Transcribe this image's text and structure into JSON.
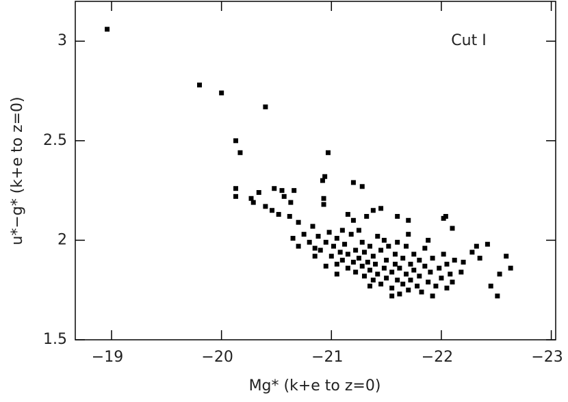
{
  "chart_data": {
    "type": "scatter",
    "xlabel": "Mg* (k+e to z=0)",
    "ylabel": "u*−g* (k+e to z=0)",
    "annotation": "Cut I",
    "xlim": [
      -18.67,
      -23.04
    ],
    "ylim": [
      1.5,
      3.2
    ],
    "xticks": [
      {
        "value": -19,
        "label": "−19"
      },
      {
        "value": -20,
        "label": "−20"
      },
      {
        "value": -21,
        "label": "−21"
      },
      {
        "value": -22,
        "label": "−22"
      },
      {
        "value": -23,
        "label": "−23"
      }
    ],
    "yticks": [
      1.5,
      2,
      2.5,
      3
    ],
    "color": "#000000",
    "x": [
      -18.96,
      -19.8,
      -20.0,
      -20.4,
      -20.13,
      -20.17,
      -20.97,
      -20.13,
      -20.13,
      -20.34,
      -20.27,
      -20.29,
      -20.48,
      -20.55,
      -20.66,
      -20.57,
      -20.63,
      -20.46,
      -20.52,
      -20.4,
      -20.92,
      -20.94,
      -20.93,
      -20.93,
      -21.2,
      -21.28,
      -21.38,
      -21.45,
      -21.32,
      -21.15,
      -21.2,
      -20.7,
      -20.62,
      -20.83,
      -21.6,
      -21.7,
      -22.04,
      -22.02,
      -22.1,
      -22.32,
      -22.42,
      -22.28,
      -22.35,
      -22.53,
      -22.59,
      -22.63,
      -22.45,
      -22.51,
      -22.2,
      -22.18,
      -20.75,
      -20.8,
      -20.85,
      -20.88,
      -20.9,
      -20.95,
      -20.98,
      -21.0,
      -21.02,
      -21.05,
      -21.05,
      -21.08,
      -21.1,
      -21.12,
      -21.15,
      -21.15,
      -21.18,
      -21.2,
      -21.22,
      -21.22,
      -21.25,
      -21.28,
      -21.28,
      -21.3,
      -21.3,
      -21.33,
      -21.35,
      -21.35,
      -21.38,
      -21.38,
      -21.4,
      -21.42,
      -21.42,
      -21.45,
      -21.45,
      -21.48,
      -21.5,
      -21.5,
      -21.52,
      -21.55,
      -21.55,
      -21.58,
      -21.58,
      -21.6,
      -21.62,
      -21.62,
      -21.65,
      -21.65,
      -21.68,
      -21.68,
      -21.7,
      -21.72,
      -21.72,
      -21.75,
      -21.75,
      -21.78,
      -21.8,
      -21.8,
      -21.82,
      -21.85,
      -21.85,
      -21.88,
      -21.9,
      -21.92,
      -21.92,
      -21.95,
      -21.98,
      -22.0,
      -22.02,
      -22.05,
      -22.05,
      -22.08,
      -21.6,
      -21.48,
      -21.25,
      -21.1,
      -20.85,
      -20.65,
      -20.7,
      -20.95,
      -21.05,
      -21.35,
      -21.55,
      -22.1,
      -22.12,
      -21.88,
      -21.7
    ],
    "values": [
      3.06,
      2.78,
      2.74,
      2.67,
      2.5,
      2.44,
      2.44,
      2.26,
      2.22,
      2.24,
      2.21,
      2.19,
      2.26,
      2.25,
      2.25,
      2.22,
      2.19,
      2.15,
      2.13,
      2.17,
      2.3,
      2.32,
      2.21,
      2.18,
      2.29,
      2.27,
      2.15,
      2.16,
      2.12,
      2.13,
      2.1,
      2.09,
      2.12,
      2.07,
      2.12,
      2.1,
      2.12,
      2.11,
      2.06,
      1.97,
      1.98,
      1.94,
      1.91,
      1.83,
      1.92,
      1.86,
      1.77,
      1.72,
      1.89,
      1.84,
      2.03,
      1.99,
      1.96,
      2.02,
      1.95,
      1.99,
      2.04,
      1.92,
      1.97,
      2.01,
      1.88,
      1.94,
      1.9,
      1.98,
      1.86,
      1.93,
      2.03,
      1.89,
      1.84,
      1.95,
      1.91,
      1.87,
      1.99,
      1.82,
      1.94,
      1.89,
      1.85,
      1.97,
      1.8,
      1.92,
      1.88,
      1.83,
      2.02,
      1.95,
      1.78,
      1.86,
      1.9,
      1.81,
      1.97,
      1.84,
      1.76,
      1.88,
      1.93,
      1.8,
      1.73,
      1.86,
      1.91,
      1.78,
      1.83,
      1.97,
      1.75,
      1.88,
      1.8,
      1.93,
      1.85,
      1.77,
      1.9,
      1.82,
      1.74,
      1.87,
      1.96,
      1.79,
      1.84,
      1.72,
      1.91,
      1.77,
      1.86,
      1.81,
      1.93,
      1.76,
      1.88,
      1.83,
      1.99,
      2.0,
      2.05,
      2.05,
      1.92,
      2.01,
      1.97,
      1.87,
      1.83,
      1.77,
      1.72,
      1.79,
      1.9,
      2.0,
      2.03
    ]
  }
}
